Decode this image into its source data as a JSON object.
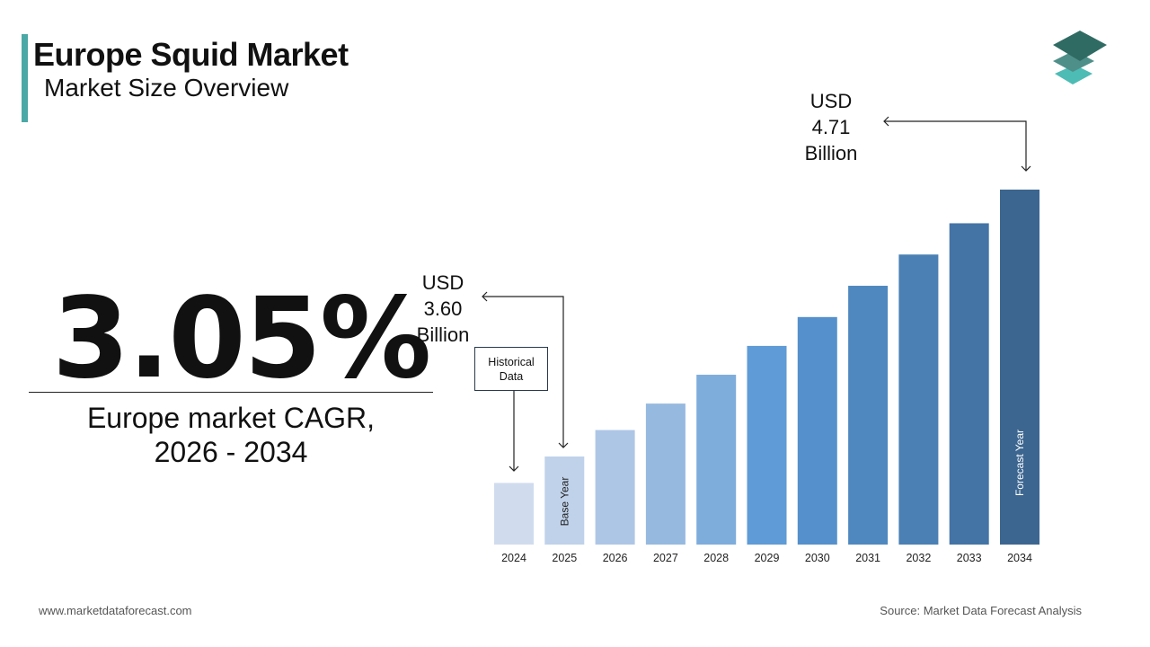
{
  "header": {
    "title": "Europe Squid Market",
    "subtitle": "Market Size Overview"
  },
  "cagr": {
    "value": "3.05%",
    "label_line1": "Europe market CAGR,",
    "label_line2": "2026 - 2034"
  },
  "callouts": {
    "start": {
      "line1": "USD",
      "line2": "3.60",
      "line3": "Billion"
    },
    "end": {
      "line1": "USD",
      "line2": "4.71",
      "line3": "Billion"
    },
    "historical": {
      "line1": "Historical",
      "line2": "Data"
    }
  },
  "footer": {
    "website": "www.marketdataforecast.com",
    "source": "Source: Market Data Forecast Analysis"
  },
  "logo": {
    "icon": "stacked-layers-logo",
    "colors": [
      "#2f6b63",
      "#4f8f89",
      "#4dbcb5"
    ]
  },
  "chart_data": {
    "type": "bar",
    "title": "",
    "xlabel": "",
    "ylabel": "",
    "grid": false,
    "categories": [
      "2024",
      "2025",
      "2026",
      "2027",
      "2028",
      "2029",
      "2030",
      "2031",
      "2032",
      "2033",
      "2034"
    ],
    "values": [
      3.49,
      3.6,
      3.71,
      3.82,
      3.94,
      4.06,
      4.18,
      4.31,
      4.44,
      4.57,
      4.71
    ],
    "unit": "USD Billion",
    "colors": [
      "#d0dcee",
      "#c0d2ea",
      "#aec6e6",
      "#96b9e0",
      "#7eaddc",
      "#5f9bd6",
      "#5590cc",
      "#4f88bf",
      "#4a80b4",
      "#4474a6",
      "#3c6690"
    ],
    "bar_annotations": {
      "1": "Base Year",
      "10": "Forecast Year"
    }
  }
}
